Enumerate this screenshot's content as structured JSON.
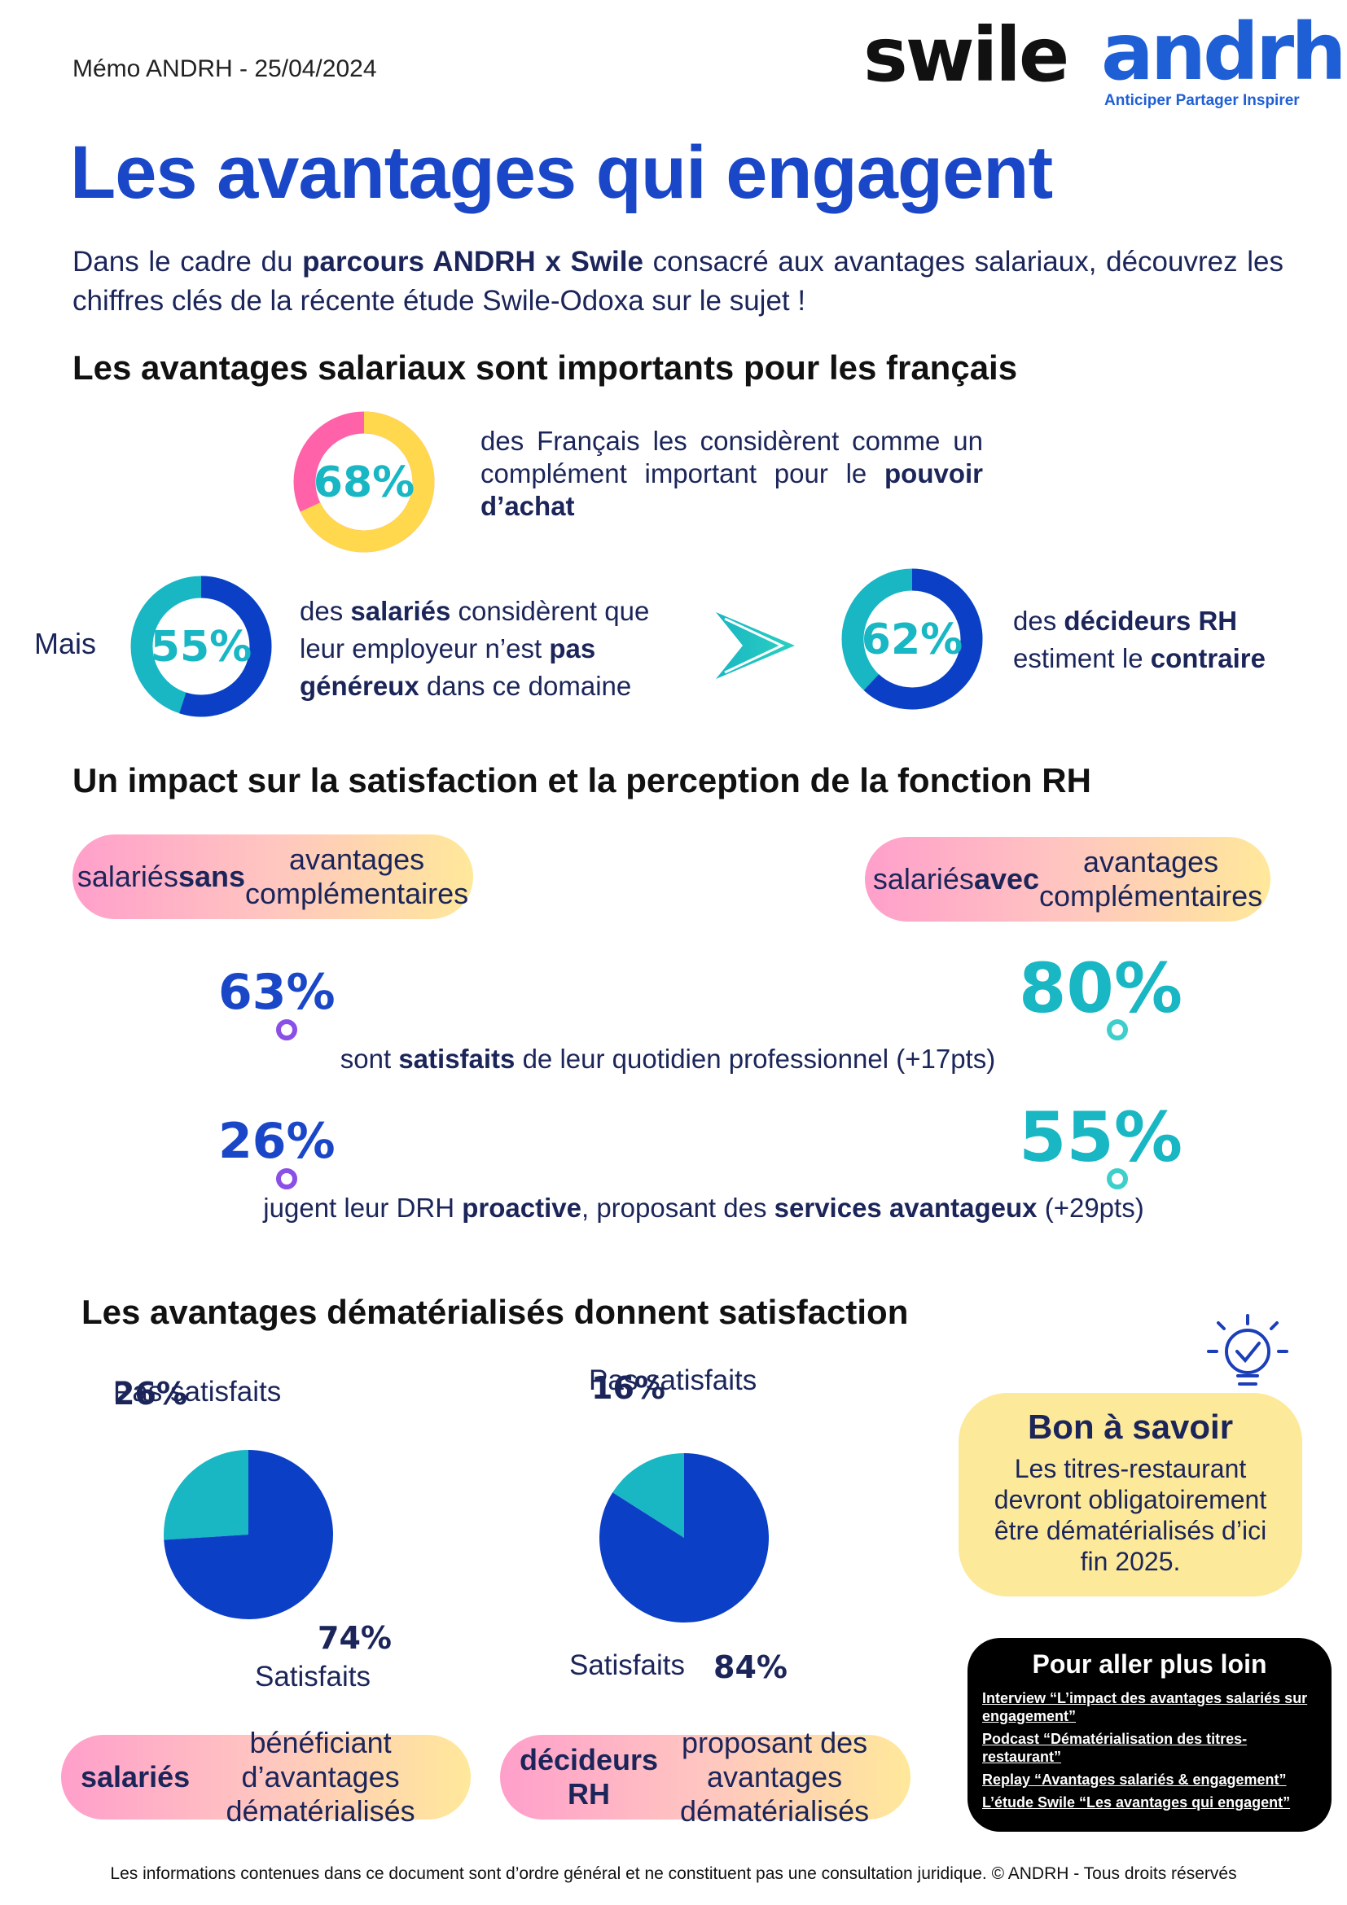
{
  "header": {
    "memo": "Mémo ANDRH - 25/04/2024",
    "logo_swile": "swile",
    "logo_andrh": "andrh",
    "tagline": "Anticiper Partager Inspirer"
  },
  "title": "Les avantages qui engagent",
  "intro": [
    {
      "text": "Dans le cadre du ",
      "bold": false
    },
    {
      "text": "parcours ANDRH x Swile",
      "bold": true
    },
    {
      "text": " consacré aux avantages salariaux, découvrez les chiffres clés de la récente étude Swile-Odoxa sur le sujet !",
      "bold": false
    }
  ],
  "section1": {
    "heading": "Les avantages salariaux sont importants pour les français",
    "stats": [
      {
        "value": 68,
        "label": "68%",
        "colors": [
          "#ffd84d",
          "#ff62a9"
        ],
        "text": [
          {
            "text": "des Français les considèrent comme un complément important pour le ",
            "bold": false
          },
          {
            "text": "pouvoir d’achat",
            "bold": true
          }
        ]
      },
      {
        "prefix": "Mais",
        "value": 55,
        "label": "55%",
        "colors": [
          "#0b3fc6",
          "#19b6c4"
        ],
        "text": [
          {
            "text": "des ",
            "bold": false
          },
          {
            "text": "salariés",
            "bold": true
          },
          {
            "text": " considèrent que leur employeur n’est ",
            "bold": false
          },
          {
            "text": "pas généreux",
            "bold": true
          },
          {
            "text": " dans ce domaine",
            "bold": false
          }
        ]
      },
      {
        "value": 62,
        "label": "62%",
        "colors": [
          "#0b3fc6",
          "#19b6c4"
        ],
        "text": [
          {
            "text": "des ",
            "bold": false
          },
          {
            "text": "décideurs RH",
            "bold": true
          },
          {
            "text": " estiment le ",
            "bold": false
          },
          {
            "text": "contraire",
            "bold": true
          }
        ]
      }
    ]
  },
  "section2": {
    "heading": "Un impact sur la satisfaction et la perception de la fonction RH",
    "pill_left": [
      {
        "text": "salariés ",
        "bold": false
      },
      {
        "text": "sans",
        "bold": true
      },
      {
        "text": " avantages complémentaires",
        "bold": false
      }
    ],
    "pill_right": [
      {
        "text": "salariés ",
        "bold": false
      },
      {
        "text": "avec",
        "bold": true
      },
      {
        "text": " avantages complémentaires",
        "bold": false
      }
    ],
    "rows": [
      {
        "from": 63,
        "from_label": "63%",
        "to": 80,
        "to_label": "80%",
        "text": [
          {
            "text": "sont ",
            "bold": false
          },
          {
            "text": "satisfaits",
            "bold": true
          },
          {
            "text": " de leur quotidien professionnel (+17pts)",
            "bold": false
          }
        ]
      },
      {
        "from": 26,
        "from_label": "26%",
        "to": 55,
        "to_label": "55%",
        "text": [
          {
            "text": "jugent leur DRH ",
            "bold": false
          },
          {
            "text": "proactive",
            "bold": true
          },
          {
            "text": ", proposant des ",
            "bold": false
          },
          {
            "text": "services avantageux",
            "bold": true
          },
          {
            "text": " (+29pts)",
            "bold": false
          }
        ]
      }
    ]
  },
  "section3": {
    "heading": "Les avantages dématérialisés donnent satisfaction",
    "pies": [
      {
        "segments": [
          {
            "name": "Pas satisfaits",
            "value": 26,
            "label": "26%",
            "color": "#19b6c4"
          },
          {
            "name": "Satisfaits",
            "value": 74,
            "label": "74%",
            "color": "#0b3fc6"
          }
        ],
        "caption": [
          {
            "text": "salariés",
            "bold": true
          },
          {
            "text": " bénéficiant d’avantages dématérialisés",
            "bold": false
          }
        ]
      },
      {
        "segments": [
          {
            "name": "Pas satisfaits",
            "value": 16,
            "label": "16%",
            "color": "#19b6c4"
          },
          {
            "name": "Satisfaits",
            "value": 84,
            "label": "84%",
            "color": "#0b3fc6"
          }
        ],
        "caption": [
          {
            "text": "décideurs RH",
            "bold": true
          },
          {
            "text": " proposant des avantages dématérialisés",
            "bold": false
          }
        ]
      }
    ],
    "tip": {
      "title": "Bon à savoir",
      "text": "Les titres-restaurant devront obligatoirement être dématérialisés d’ici fin 2025."
    },
    "links": {
      "title": "Pour aller plus loin",
      "items": [
        "Interview “L’impact des avantages salariés sur engagement”",
        "Podcast “Dématérialisation des titres-restaurant”",
        "Replay “Avantages salariés & engagement”",
        "L’étude Swile “Les avantages qui engagent”"
      ]
    }
  },
  "footer": "Les informations contenues dans ce document sont d’ordre général et ne constituent pas une consultation juridique. © ANDRH - Tous droits réservés"
}
